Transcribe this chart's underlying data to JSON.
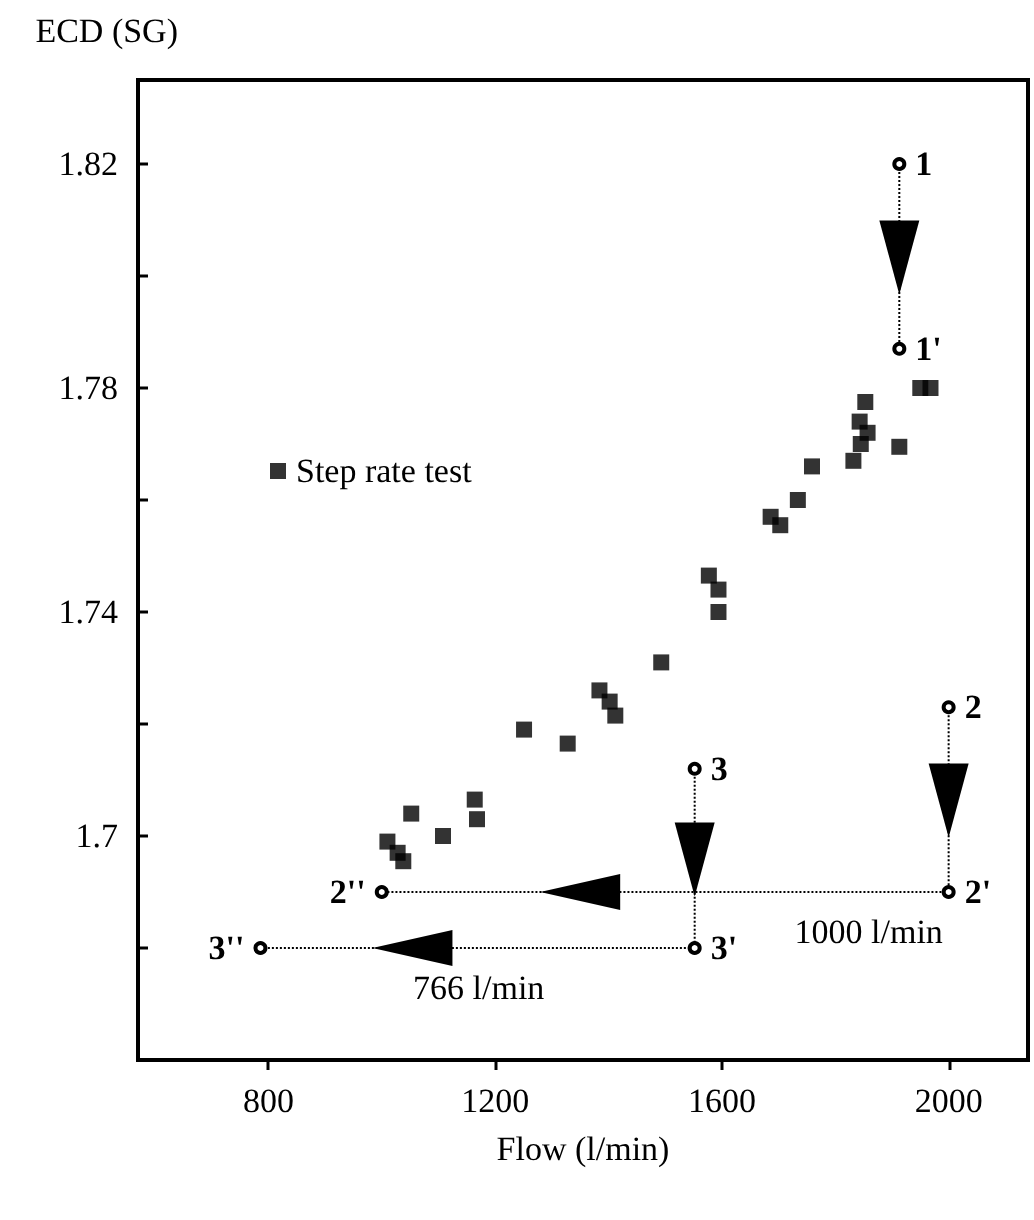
{
  "chart_data": {
    "type": "scatter",
    "xlabel": "Flow (l/min)",
    "ylabel": "ECD (SG)",
    "xlim": [
      570,
      2140
    ],
    "xticks": [
      800,
      1200,
      1600,
      2000
    ],
    "ylim": [
      1.66,
      1.835
    ],
    "yticks": [
      {
        "value": 1.68,
        "label": null
      },
      1.7,
      {
        "value": 1.72,
        "label": null
      },
      1.74,
      {
        "value": 1.76,
        "label": null
      },
      1.78,
      {
        "value": 1.8,
        "label": null
      },
      1.82
    ],
    "legend": "left",
    "marker": "square",
    "series": [
      {
        "name": "Step rate test",
        "color": "#000000",
        "x": [
          1950,
          1968,
          1853,
          1843,
          1857,
          1845,
          1913,
          1832,
          1759,
          1734,
          1686,
          1703,
          1577,
          1594,
          1594,
          1493,
          1384,
          1402,
          1412,
          1251,
          1328,
          1164,
          1168,
          1052,
          1108,
          1010,
          1028,
          1038
        ],
        "values": [
          1.78,
          1.78,
          1.7775,
          1.774,
          1.772,
          1.77,
          1.7695,
          1.767,
          1.766,
          1.76,
          1.757,
          1.7555,
          1.7465,
          1.744,
          1.74,
          1.731,
          1.726,
          1.724,
          1.7215,
          1.719,
          1.7165,
          1.7065,
          1.703,
          1.704,
          1.7,
          1.699,
          1.697,
          1.6955
        ]
      },
      {
        "type": "line",
        "color": "#000000",
        "marker": "circle",
        "line_style": "dotted",
        "x": [
          1913,
          1913
        ],
        "values": [
          1.82,
          1.787
        ]
      },
      {
        "type": "line",
        "color": "#000000",
        "marker": "circle",
        "line_style": "dotted",
        "x": [
          2000,
          2000,
          1000
        ],
        "values": [
          1.723,
          1.69,
          1.69
        ]
      },
      {
        "type": "line",
        "color": "#000000",
        "marker": "circle",
        "line_style": "dotted",
        "x": [
          1552,
          1552,
          786
        ],
        "values": [
          1.712,
          1.68,
          1.68
        ]
      }
    ],
    "annotations": [
      {
        "text": "1",
        "x": 1913,
        "y": 1.82
      },
      {
        "text": "1'",
        "x": 1913,
        "y": 1.787
      },
      {
        "text": "2",
        "x": 2000,
        "y": 1.723
      },
      {
        "text": "2'",
        "x": 2000,
        "y": 1.69
      },
      {
        "text": "2''",
        "x": 1000,
        "y": 1.69
      },
      {
        "text": "3",
        "x": 1552,
        "y": 1.712
      },
      {
        "text": "3'",
        "x": 1552,
        "y": 1.68
      },
      {
        "text": "3''",
        "x": 786,
        "y": 1.68
      },
      {
        "text": "1000 l/min",
        "x": 1859,
        "y": 1.69
      },
      {
        "text": "766 l/min",
        "x": 1171,
        "y": 1.68
      }
    ]
  }
}
